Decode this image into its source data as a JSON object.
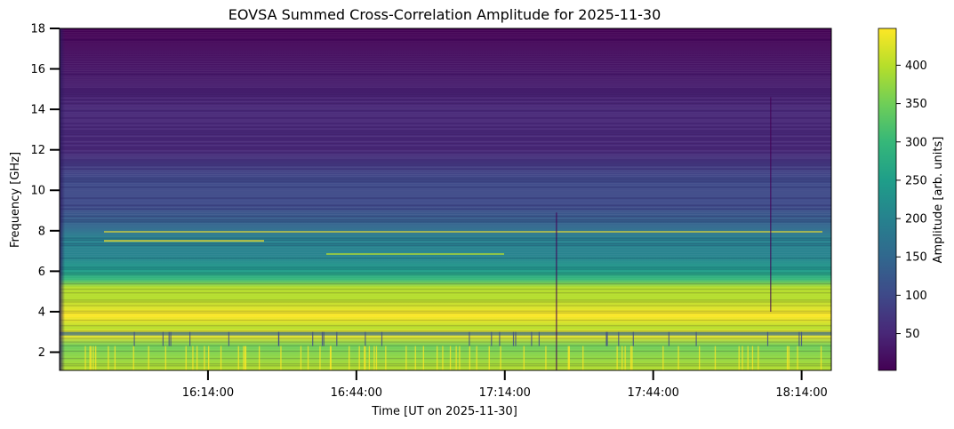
{
  "chart_data": {
    "type": "heatmap",
    "title": "EOVSA Summed Cross-Correlation Amplitude for 2025-11-30",
    "xlabel": "Time [UT on 2025-11-30]",
    "ylabel": "Frequency [GHz]",
    "x_range": [
      "15:44:00",
      "18:20:00"
    ],
    "x_ticks": [
      "16:14:00",
      "16:44:00",
      "17:14:00",
      "17:44:00",
      "18:14:00"
    ],
    "ylim": [
      1.1,
      18.0
    ],
    "y_ticks": [
      2,
      4,
      6,
      8,
      10,
      12,
      14,
      16,
      18
    ],
    "colorbar": {
      "label": "Amplitude [arb. units]",
      "range": [
        2,
        448
      ],
      "ticks": [
        50,
        100,
        150,
        200,
        250,
        300,
        350,
        400
      ]
    },
    "colormap": [
      "#440154",
      "#482878",
      "#3e4a89",
      "#31688e",
      "#26828e",
      "#1f9e89",
      "#35b779",
      "#6ece58",
      "#b5de2b",
      "#fde725"
    ],
    "freq_amplitude_profile": [
      {
        "freq": 1.1,
        "amp": 380
      },
      {
        "freq": 2.3,
        "amp": 360
      },
      {
        "freq": 2.9,
        "amp": 440
      },
      {
        "freq": 3.2,
        "amp": 420
      },
      {
        "freq": 3.8,
        "amp": 430
      },
      {
        "freq": 4.6,
        "amp": 410
      },
      {
        "freq": 5.2,
        "amp": 380
      },
      {
        "freq": 5.6,
        "amp": 300
      },
      {
        "freq": 6.0,
        "amp": 260
      },
      {
        "freq": 6.8,
        "amp": 220
      },
      {
        "freq": 7.6,
        "amp": 200
      },
      {
        "freq": 8.2,
        "amp": 170
      },
      {
        "freq": 9.2,
        "amp": 110
      },
      {
        "freq": 10.5,
        "amp": 80
      },
      {
        "freq": 12.0,
        "amp": 55
      },
      {
        "freq": 14.0,
        "amp": 30
      },
      {
        "freq": 18.0,
        "amp": 12
      }
    ]
  }
}
